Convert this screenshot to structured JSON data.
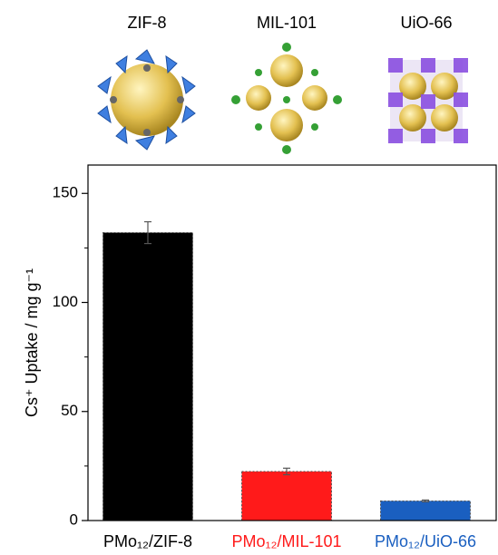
{
  "structure_labels": [
    "ZIF-8",
    "MIL-101",
    "UiO-66"
  ],
  "chart_data": {
    "type": "bar",
    "y_label": "Cs⁺ Uptake / mg g⁻¹",
    "categories": [
      "PMo₁₂/ZIF-8",
      "PMo₁₂/MIL-101",
      "PMo₁₂/UiO-66"
    ],
    "values": [
      132,
      22.5,
      9
    ],
    "errors": [
      5,
      1.5,
      0.4
    ],
    "colors": [
      "#000000",
      "#ff1a1a",
      "#1a5fc0"
    ],
    "ylim": [
      0,
      163
    ],
    "yticks": [
      0,
      50,
      100,
      150
    ],
    "minor_yticks": [
      25,
      75,
      125
    ]
  }
}
